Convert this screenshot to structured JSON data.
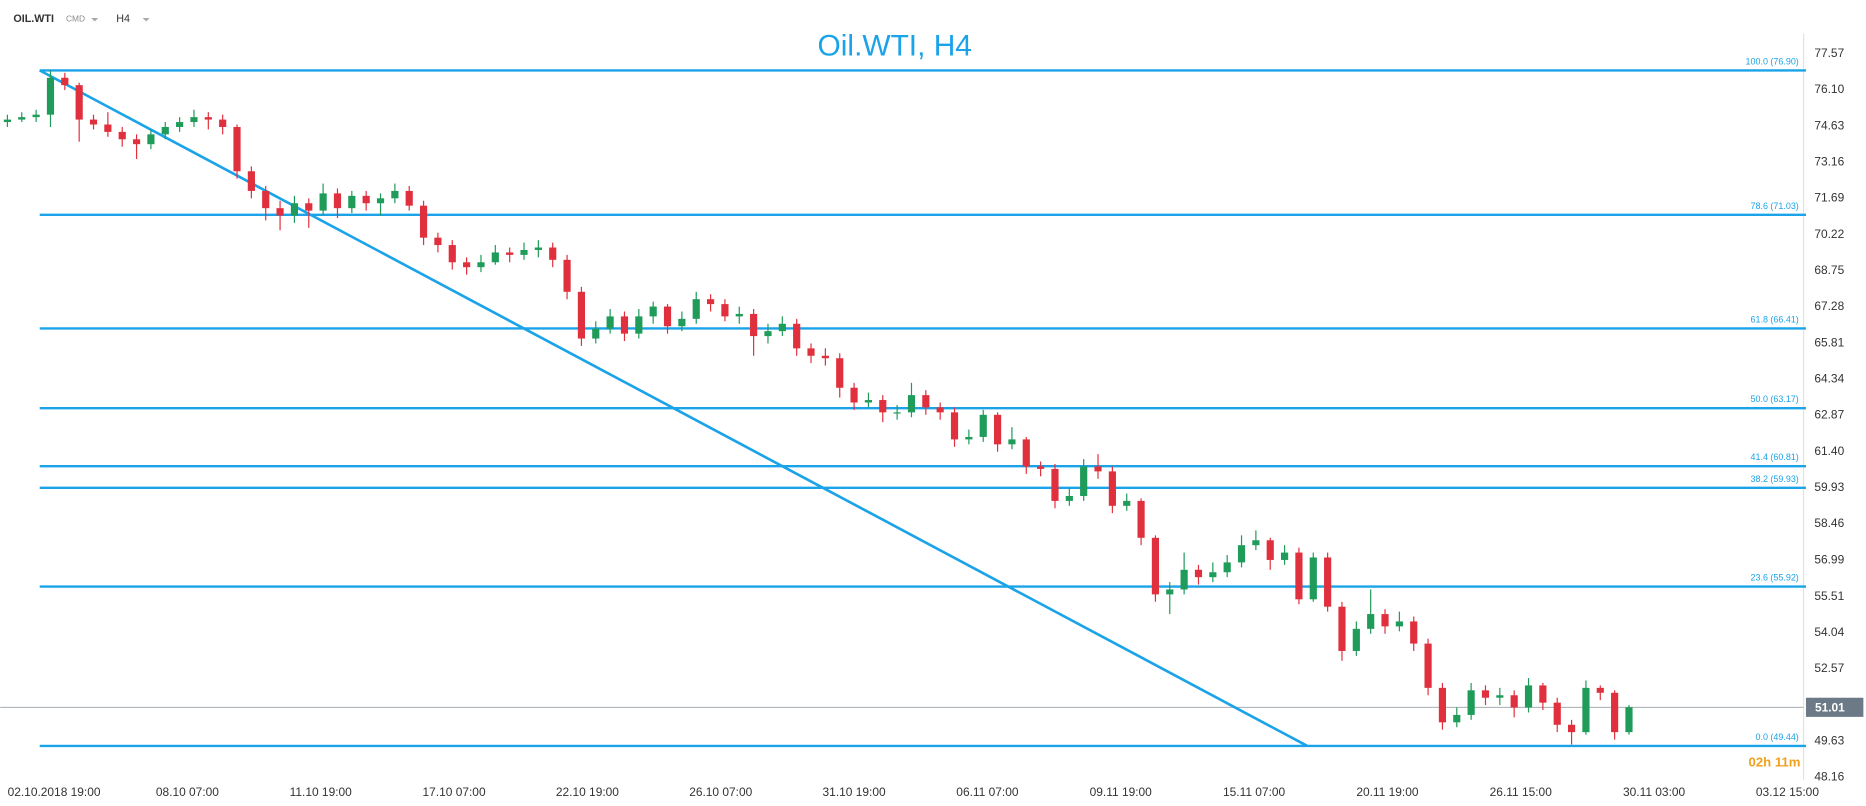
{
  "header": {
    "symbol": "OIL.WTI",
    "market": "CMD",
    "timeframe": "H4"
  },
  "chart_data": {
    "type": "candlestick",
    "title": "Oil.WTI, H4",
    "up_color": "#1f9b5a",
    "down_color": "#e0303e",
    "line_color": "#1aa3e8",
    "ylim": [
      47.29,
      78.4
    ],
    "yticks": [
      77.57,
      {
        "value": 76.1,
        "label": "76.10"
      },
      74.63,
      73.16,
      71.69,
      70.22,
      68.75,
      67.28,
      65.81,
      64.34,
      62.87,
      {
        "value": 61.4,
        "label": "61.40"
      },
      59.93,
      58.46,
      56.99,
      55.51,
      54.04,
      52.57,
      49.63,
      48.16
    ],
    "categories": [
      "02.10.2018  19:00",
      "08.10  07:00",
      "11.10  19:00",
      "17.10  07:00",
      "22.10  19:00",
      "26.10  07:00",
      "31.10  19:00",
      "06.11  07:00",
      "09.11  19:00",
      "15.11  07:00",
      "20.11  19:00",
      "26.11  15:00",
      "30.11  03:00",
      "03.12  15:00"
    ],
    "open": [
      74.8,
      74.9,
      75.0,
      75.1,
      76.6,
      76.3,
      74.9,
      74.7,
      74.4,
      74.1,
      73.9,
      74.3,
      74.6,
      74.8,
      75.0,
      74.9,
      74.6,
      72.8,
      72.0,
      71.3,
      71.0,
      71.5,
      71.2,
      71.9,
      71.3,
      71.8,
      71.5,
      71.7,
      72.0,
      71.4,
      70.1,
      69.8,
      69.1,
      68.9,
      69.1,
      69.5,
      69.4,
      69.6,
      69.7,
      69.2,
      67.9,
      66.0,
      66.4,
      66.9,
      66.2,
      66.9,
      67.3,
      66.5,
      66.8,
      67.6,
      67.4,
      66.9,
      67.0,
      66.1,
      66.3,
      66.6,
      65.6,
      65.3,
      65.2,
      64.0,
      63.4,
      63.5,
      63.0,
      63.0,
      63.7,
      63.2,
      63.0,
      61.9,
      62.0,
      62.9,
      61.7,
      61.9,
      60.8,
      60.7,
      59.4,
      59.6,
      60.8,
      60.6,
      59.2,
      59.4,
      57.9,
      55.6,
      55.8,
      56.6,
      56.3,
      56.5,
      56.9,
      57.6,
      57.8,
      57.0,
      57.3,
      55.4,
      57.1,
      55.1,
      53.3,
      54.2,
      54.8,
      54.3,
      54.5,
      53.6,
      51.8,
      50.4,
      50.7,
      51.7,
      51.4,
      51.5,
      51.0,
      51.9,
      51.2,
      50.3,
      50.0,
      51.8,
      51.6,
      50.0
    ],
    "high": [
      75.1,
      75.2,
      75.3,
      76.9,
      76.8,
      76.4,
      75.1,
      75.2,
      74.6,
      74.3,
      74.5,
      74.8,
      75.0,
      75.3,
      75.2,
      75.1,
      74.7,
      73.0,
      72.2,
      71.6,
      71.8,
      71.7,
      72.3,
      72.1,
      72.0,
      72.0,
      71.9,
      72.3,
      72.2,
      71.6,
      70.3,
      70.0,
      69.3,
      69.4,
      69.8,
      69.7,
      69.9,
      70.0,
      69.9,
      69.4,
      68.1,
      66.7,
      67.2,
      67.1,
      67.2,
      67.5,
      67.4,
      67.1,
      67.9,
      67.8,
      67.6,
      67.3,
      67.2,
      66.6,
      66.9,
      66.8,
      65.8,
      65.6,
      65.4,
      64.2,
      63.8,
      63.7,
      63.3,
      64.2,
      63.9,
      63.4,
      63.2,
      62.3,
      63.1,
      63.0,
      62.4,
      62.0,
      61.0,
      60.9,
      59.9,
      61.1,
      61.3,
      60.8,
      59.7,
      59.5,
      58.0,
      56.1,
      57.3,
      56.8,
      56.9,
      57.2,
      58.0,
      58.2,
      57.9,
      57.6,
      57.5,
      57.3,
      57.3,
      55.3,
      54.5,
      55.8,
      55.0,
      54.9,
      54.7,
      53.8,
      52.0,
      51.0,
      52.0,
      51.9,
      51.8,
      51.7,
      52.2,
      52.0,
      51.4,
      50.5,
      52.1,
      51.9,
      51.7,
      51.1
    ],
    "low": [
      74.6,
      74.8,
      74.8,
      74.6,
      76.1,
      74.0,
      74.5,
      74.2,
      73.8,
      73.3,
      73.7,
      74.1,
      74.4,
      74.6,
      74.5,
      74.3,
      72.5,
      71.7,
      70.8,
      70.4,
      70.7,
      70.5,
      71.0,
      70.9,
      71.1,
      71.2,
      71.0,
      71.5,
      71.2,
      69.8,
      69.5,
      68.8,
      68.6,
      68.7,
      69.0,
      69.1,
      69.2,
      69.3,
      68.9,
      67.6,
      65.7,
      65.8,
      66.2,
      65.9,
      66.0,
      66.6,
      66.2,
      66.3,
      66.6,
      67.1,
      66.7,
      66.6,
      65.3,
      65.8,
      66.1,
      65.3,
      65.0,
      64.9,
      63.6,
      63.1,
      63.2,
      62.6,
      62.7,
      62.8,
      62.9,
      62.7,
      61.6,
      61.7,
      61.8,
      61.4,
      61.5,
      60.5,
      60.4,
      59.1,
      59.2,
      59.4,
      60.3,
      58.9,
      59.0,
      57.6,
      55.3,
      54.8,
      55.6,
      56.0,
      56.1,
      56.3,
      56.7,
      57.4,
      56.6,
      56.8,
      55.2,
      55.3,
      54.9,
      52.9,
      53.1,
      54.0,
      54.0,
      54.1,
      53.3,
      51.5,
      50.1,
      50.2,
      50.5,
      51.1,
      51.1,
      50.6,
      50.8,
      50.9,
      50.0,
      49.5,
      49.9,
      51.3,
      49.7,
      49.9
    ],
    "close": [
      74.9,
      75.0,
      75.1,
      76.6,
      76.3,
      74.9,
      74.7,
      74.4,
      74.1,
      73.9,
      74.3,
      74.6,
      74.8,
      75.0,
      74.9,
      74.6,
      72.8,
      72.0,
      71.3,
      71.0,
      71.5,
      71.2,
      71.9,
      71.3,
      71.8,
      71.5,
      71.7,
      72.0,
      71.4,
      70.1,
      69.8,
      69.1,
      68.9,
      69.1,
      69.5,
      69.4,
      69.6,
      69.7,
      69.2,
      67.9,
      66.0,
      66.4,
      66.9,
      66.2,
      66.9,
      67.3,
      66.5,
      66.8,
      67.6,
      67.4,
      66.9,
      67.0,
      66.1,
      66.3,
      66.6,
      65.6,
      65.3,
      65.2,
      64.0,
      63.4,
      63.5,
      63.0,
      63.0,
      63.7,
      63.2,
      63.0,
      61.9,
      62.0,
      62.9,
      61.7,
      61.9,
      60.8,
      60.7,
      59.4,
      59.6,
      60.8,
      60.6,
      59.2,
      59.4,
      57.9,
      55.6,
      55.8,
      56.6,
      56.3,
      56.5,
      56.9,
      57.6,
      57.8,
      57.0,
      57.3,
      55.4,
      57.1,
      55.1,
      53.3,
      54.2,
      54.8,
      54.3,
      54.5,
      53.6,
      51.8,
      50.4,
      50.7,
      51.7,
      51.4,
      51.5,
      51.0,
      51.9,
      51.2,
      50.3,
      50.0,
      51.8,
      51.6,
      50.0,
      51.01
    ],
    "fib_levels": [
      {
        "value": 76.9,
        "label": "100.0 (76.90)"
      },
      {
        "value": 71.03,
        "label": "78.6 (71.03)"
      },
      {
        "value": 66.41,
        "label": "61.8 (66.41)"
      },
      {
        "value": 63.17,
        "label": "50.0 (63.17)"
      },
      {
        "value": 60.81,
        "label": "41.4 (60.81)"
      },
      {
        "value": 59.93,
        "label": "38.2 (59.93)"
      },
      {
        "value": 55.92,
        "label": "23.6 (55.92)"
      },
      {
        "value": 49.44,
        "label": "0.0 (49.44)"
      }
    ],
    "current_price": {
      "value": 51.01,
      "label": "51.01"
    },
    "countdown": "02h 11m"
  }
}
